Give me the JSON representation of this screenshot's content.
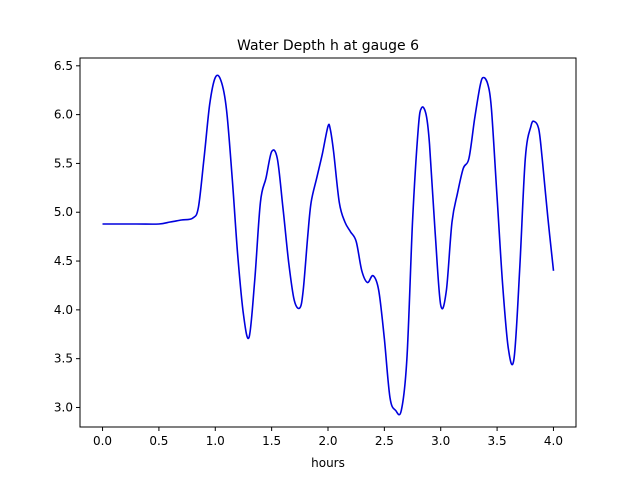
{
  "chart_data": {
    "type": "line",
    "title": "Water Depth h at gauge 6",
    "xlabel": "hours",
    "ylabel": "",
    "xlim": [
      -0.2,
      4.2
    ],
    "ylim": [
      2.8,
      6.58
    ],
    "xticks": [
      0.0,
      0.5,
      1.0,
      1.5,
      2.0,
      2.5,
      3.0,
      3.5,
      4.0
    ],
    "xtick_labels": [
      "0.0",
      "0.5",
      "1.0",
      "1.5",
      "2.0",
      "2.5",
      "3.0",
      "3.5",
      "4.0"
    ],
    "yticks": [
      3.0,
      3.5,
      4.0,
      4.5,
      5.0,
      5.5,
      6.0,
      6.5
    ],
    "ytick_labels": [
      "3.0",
      "3.5",
      "4.0",
      "4.5",
      "5.0",
      "5.5",
      "6.0",
      "6.5"
    ],
    "grid": false,
    "series": [
      {
        "color": "#0000dd",
        "x": [
          0.0,
          0.3,
          0.5,
          0.6,
          0.7,
          0.8,
          0.85,
          0.9,
          0.95,
          1.0,
          1.05,
          1.1,
          1.15,
          1.2,
          1.25,
          1.3,
          1.35,
          1.4,
          1.45,
          1.5,
          1.55,
          1.6,
          1.65,
          1.7,
          1.75,
          1.78,
          1.82,
          1.85,
          1.9,
          1.95,
          2.0,
          2.02,
          2.05,
          2.1,
          2.15,
          2.2,
          2.25,
          2.3,
          2.35,
          2.4,
          2.45,
          2.5,
          2.55,
          2.6,
          2.65,
          2.7,
          2.75,
          2.8,
          2.83,
          2.87,
          2.9,
          2.95,
          3.0,
          3.05,
          3.1,
          3.15,
          3.2,
          3.25,
          3.3,
          3.35,
          3.38,
          3.42,
          3.45,
          3.5,
          3.55,
          3.6,
          3.65,
          3.7,
          3.75,
          3.8,
          3.83,
          3.87,
          3.9,
          3.95,
          4.0
        ],
        "y": [
          4.88,
          4.88,
          4.88,
          4.9,
          4.92,
          4.94,
          5.05,
          5.55,
          6.1,
          6.38,
          6.35,
          6.05,
          5.35,
          4.55,
          3.95,
          3.72,
          4.3,
          5.1,
          5.35,
          5.62,
          5.55,
          5.05,
          4.5,
          4.1,
          4.02,
          4.2,
          4.75,
          5.1,
          5.35,
          5.6,
          5.88,
          5.85,
          5.62,
          5.1,
          4.9,
          4.8,
          4.7,
          4.4,
          4.28,
          4.35,
          4.2,
          3.7,
          3.1,
          2.97,
          2.97,
          3.5,
          4.9,
          5.85,
          6.07,
          6.0,
          5.7,
          4.8,
          4.05,
          4.2,
          4.9,
          5.2,
          5.45,
          5.55,
          5.95,
          6.3,
          6.38,
          6.3,
          6.05,
          5.15,
          4.25,
          3.6,
          3.5,
          4.4,
          5.55,
          5.88,
          5.93,
          5.85,
          5.55,
          4.95,
          4.4
        ]
      }
    ]
  }
}
